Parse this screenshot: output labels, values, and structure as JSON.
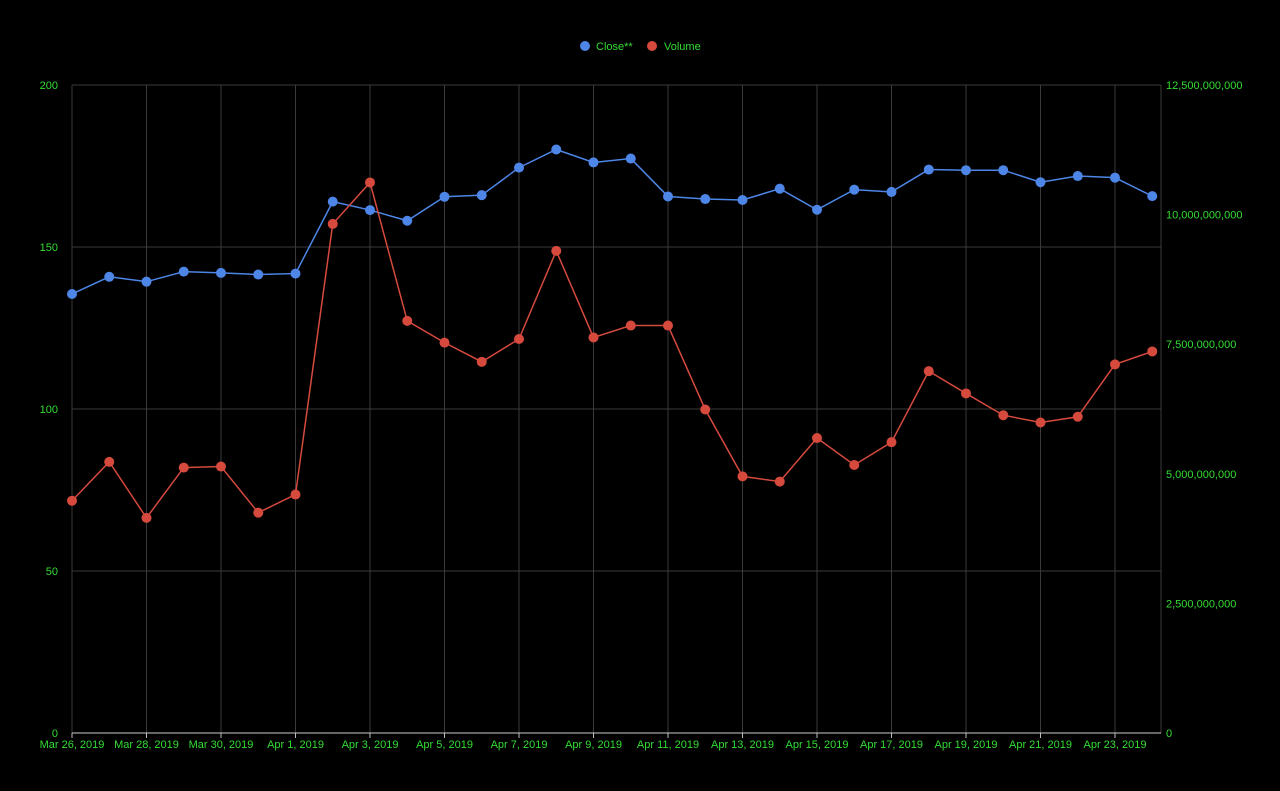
{
  "chart_data": {
    "type": "line",
    "x": [
      "2019-03-26",
      "2019-03-27",
      "2019-03-28",
      "2019-03-29",
      "2019-03-30",
      "2019-03-31",
      "2019-04-01",
      "2019-04-02",
      "2019-04-03",
      "2019-04-04",
      "2019-04-05",
      "2019-04-06",
      "2019-04-07",
      "2019-04-08",
      "2019-04-09",
      "2019-04-10",
      "2019-04-11",
      "2019-04-12",
      "2019-04-13",
      "2019-04-14",
      "2019-04-15",
      "2019-04-16",
      "2019-04-17",
      "2019-04-18",
      "2019-04-19",
      "2019-04-20",
      "2019-04-21",
      "2019-04-22",
      "2019-04-23",
      "2019-04-24"
    ],
    "x_tick_labels": [
      "Mar 26, 2019",
      "Mar 28, 2019",
      "Mar 30, 2019",
      "Apr 1, 2019",
      "Apr 3, 2019",
      "Apr 5, 2019",
      "Apr 7, 2019",
      "Apr 9, 2019",
      "Apr 11, 2019",
      "Apr 13, 2019",
      "Apr 15, 2019",
      "Apr 17, 2019",
      "Apr 19, 2019",
      "Apr 21, 2019",
      "Apr 23, 2019"
    ],
    "series": [
      {
        "name": "Close**",
        "axis": "left",
        "color": "#4d86e6",
        "values": [
          135.5,
          140.8,
          139.3,
          142.4,
          142.0,
          141.5,
          141.8,
          164.0,
          161.4,
          158.1,
          165.5,
          166.0,
          174.5,
          180.1,
          176.1,
          177.3,
          165.6,
          164.8,
          164.5,
          168.0,
          161.5,
          167.7,
          167.0,
          173.9,
          173.7,
          173.7,
          170.0,
          171.9,
          171.4,
          165.7
        ]
      },
      {
        "name": "Volume",
        "axis": "right",
        "color": "#d64a3e",
        "values": [
          4480000000,
          5230000000,
          4150000000,
          5120000000,
          5140000000,
          4250000000,
          4600000000,
          9820000000,
          10620000000,
          7950000000,
          7530000000,
          7160000000,
          7600000000,
          9300000000,
          7630000000,
          7860000000,
          7860000000,
          6240000000,
          4950000000,
          4850000000,
          5690000000,
          5170000000,
          5610000000,
          6980000000,
          6550000000,
          6130000000,
          5990000000,
          6100000000,
          7110000000,
          7360000000
        ]
      }
    ],
    "y_left": {
      "ticks": [
        "0",
        "50",
        "100",
        "150",
        "200"
      ],
      "ylim": [
        0,
        200
      ]
    },
    "y_right": {
      "ticks": [
        "0",
        "2,500,000,000",
        "5,000,000,000",
        "7,500,000,000",
        "10,000,000,000",
        "12,500,000,000"
      ],
      "ylim": [
        0,
        12500000000
      ]
    },
    "legend": {
      "position": "top-center",
      "items": [
        "Close**",
        "Volume"
      ]
    },
    "grid": true,
    "colors": {
      "background": "#000000",
      "grid": "#3a3a3a",
      "axis_text": "#33dd33",
      "legend_text": "#33dd33"
    }
  }
}
